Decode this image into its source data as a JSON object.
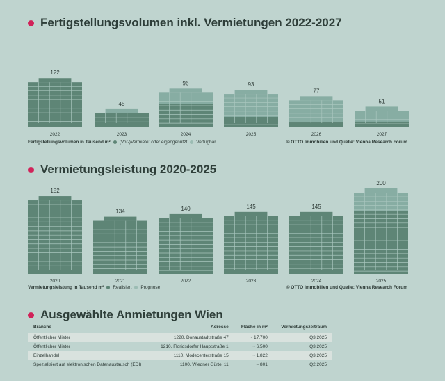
{
  "colors": {
    "background": "#bfd4cf",
    "accent": "#d1235a",
    "dark": "#5e8576",
    "light": "#87ada3"
  },
  "chart_data": [
    {
      "type": "bar",
      "stacked": true,
      "title": "Fertigstellungsvolumen inkl. Vermietungen 2022-2027",
      "categories": [
        "2022",
        "2023",
        "2024",
        "2025",
        "2026",
        "2027"
      ],
      "totals": [
        "122",
        "45",
        "96",
        "93",
        "77",
        "51"
      ],
      "series": [
        {
          "name": "(Vor-)Vermietet oder eigengenutzt",
          "values": [
            122,
            36,
            57,
            25,
            12,
            14
          ]
        },
        {
          "name": "Verfügbar",
          "values": [
            0,
            9,
            39,
            68,
            65,
            37
          ]
        }
      ],
      "legend_title": "Fertigstellungsvolumen in Tausend m²",
      "source": "© OTTO Immobilien und Quelle: Vienna Research Forum",
      "legend": "bottom-left"
    },
    {
      "type": "bar",
      "stacked": true,
      "title": "Vermietungsleistung 2020-2025",
      "categories": [
        "2020",
        "2021",
        "2022",
        "2023",
        "2024",
        "2025"
      ],
      "totals": [
        "182",
        "134",
        "140",
        "145",
        "145",
        "200"
      ],
      "series": [
        {
          "name": "Realisiert",
          "values": [
            182,
            134,
            140,
            145,
            145,
            147
          ]
        },
        {
          "name": "Prognose",
          "values": [
            0,
            0,
            0,
            0,
            0,
            53
          ]
        }
      ],
      "legend_title": "Vermietungsleistung in Tausend m²",
      "source": "© OTTO Immobilien und Quelle: Vienna Research Forum",
      "legend": "bottom-left"
    }
  ],
  "table": {
    "title": "Ausgewählte Anmietungen Wien",
    "headers": [
      "Branche",
      "Adresse",
      "Fläche in m²",
      "Vermietungszeitraum"
    ],
    "rows": [
      [
        "Öffentlicher Mieter",
        "1220, Donaustadtstraße 47",
        "~ 17.700",
        "Q3 2025"
      ],
      [
        "Öffentlicher Mieter",
        "1210, Floridsdorfer Hauptstraße 1",
        "~ 6.500",
        "Q3 2025"
      ],
      [
        "Einzelhandel",
        "1110, Modecenterstraße 15",
        "~ 1.822",
        "Q3 2025"
      ],
      [
        "Spezialisiert auf elektronischen Datenaustausch (EDI)",
        "1100, Wiedner Gürtel 11",
        "~ 801",
        "Q2 2025"
      ]
    ]
  }
}
